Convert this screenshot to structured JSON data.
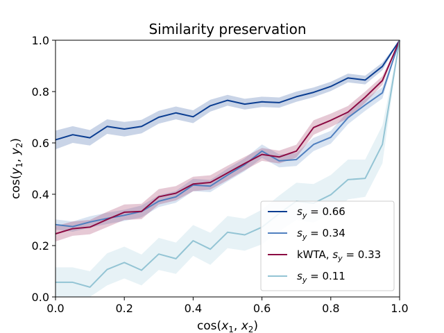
{
  "chart_data": {
    "type": "line",
    "title": "Similarity preservation",
    "xlabel": {
      "prefix": "cos(",
      "v1": "x",
      "s1": "1",
      "sep": ", ",
      "v2": "x",
      "s2": "2",
      "suffix": ")"
    },
    "ylabel": {
      "prefix": "cos(",
      "v1": "y",
      "s1": "1",
      "sep": ", ",
      "v2": "y",
      "s2": "2",
      "suffix": ")"
    },
    "xlim": [
      0.0,
      1.0
    ],
    "ylim": [
      0.0,
      1.0
    ],
    "xticks": [
      "0.0",
      "0.2",
      "0.4",
      "0.6",
      "0.8",
      "1.0"
    ],
    "yticks": [
      "0.0",
      "0.2",
      "0.4",
      "0.6",
      "0.8",
      "1.0"
    ],
    "grid": false,
    "legend_position": "lower-right",
    "x": [
      0.0,
      0.05,
      0.1,
      0.15,
      0.2,
      0.25,
      0.3,
      0.35,
      0.4,
      0.45,
      0.5,
      0.55,
      0.6,
      0.65,
      0.7,
      0.75,
      0.8,
      0.85,
      0.9,
      0.95,
      1.0
    ],
    "series": [
      {
        "name": {
          "pre": "",
          "var": "s",
          "sub": "y",
          "val": " = 0.66"
        },
        "color": "#0a3d91",
        "values": [
          0.612,
          0.632,
          0.62,
          0.664,
          0.654,
          0.664,
          0.7,
          0.717,
          0.702,
          0.745,
          0.766,
          0.751,
          0.76,
          0.757,
          0.78,
          0.797,
          0.82,
          0.853,
          0.845,
          0.898,
          1.0
        ],
        "lower": [
          0.575,
          0.6,
          0.59,
          0.635,
          0.625,
          0.637,
          0.675,
          0.692,
          0.677,
          0.722,
          0.745,
          0.73,
          0.74,
          0.737,
          0.76,
          0.778,
          0.802,
          0.836,
          0.828,
          0.883,
          1.0
        ],
        "upper": [
          0.648,
          0.665,
          0.65,
          0.692,
          0.682,
          0.69,
          0.725,
          0.742,
          0.727,
          0.768,
          0.787,
          0.772,
          0.78,
          0.777,
          0.8,
          0.816,
          0.838,
          0.87,
          0.862,
          0.913,
          1.0
        ]
      },
      {
        "name": {
          "pre": "",
          "var": "s",
          "sub": "y",
          "val": " = 0.34"
        },
        "color": "#4f7fbf",
        "values": [
          0.282,
          0.274,
          0.292,
          0.306,
          0.318,
          0.333,
          0.373,
          0.39,
          0.436,
          0.432,
          0.475,
          0.515,
          0.568,
          0.53,
          0.535,
          0.594,
          0.622,
          0.698,
          0.748,
          0.795,
          1.0
        ],
        "lower": [
          0.262,
          0.254,
          0.27,
          0.284,
          0.296,
          0.31,
          0.35,
          0.367,
          0.412,
          0.408,
          0.45,
          0.49,
          0.542,
          0.505,
          0.51,
          0.568,
          0.597,
          0.673,
          0.725,
          0.773,
          1.0
        ],
        "upper": [
          0.302,
          0.294,
          0.314,
          0.328,
          0.34,
          0.356,
          0.396,
          0.413,
          0.46,
          0.456,
          0.5,
          0.54,
          0.594,
          0.555,
          0.56,
          0.62,
          0.647,
          0.723,
          0.771,
          0.817,
          1.0
        ]
      },
      {
        "name": {
          "pre": "kWTA, ",
          "var": "s",
          "sub": "y",
          "val": " = 0.33"
        },
        "color": "#8b0a42",
        "values": [
          0.246,
          0.266,
          0.272,
          0.302,
          0.33,
          0.333,
          0.39,
          0.404,
          0.44,
          0.446,
          0.483,
          0.52,
          0.555,
          0.545,
          0.568,
          0.66,
          0.688,
          0.72,
          0.778,
          0.843,
          1.0
        ],
        "lower": [
          0.216,
          0.238,
          0.244,
          0.272,
          0.3,
          0.303,
          0.36,
          0.376,
          0.412,
          0.418,
          0.455,
          0.494,
          0.53,
          0.52,
          0.543,
          0.632,
          0.662,
          0.696,
          0.756,
          0.826,
          1.0
        ],
        "upper": [
          0.276,
          0.294,
          0.3,
          0.332,
          0.36,
          0.363,
          0.42,
          0.432,
          0.468,
          0.474,
          0.511,
          0.546,
          0.58,
          0.57,
          0.593,
          0.688,
          0.714,
          0.744,
          0.8,
          0.86,
          1.0
        ]
      },
      {
        "name": {
          "pre": "",
          "var": "s",
          "sub": "y",
          "val": " = 0.11"
        },
        "color": "#93c4d4",
        "values": [
          0.057,
          0.057,
          0.038,
          0.107,
          0.134,
          0.104,
          0.167,
          0.149,
          0.219,
          0.186,
          0.252,
          0.242,
          0.272,
          0.325,
          0.373,
          0.365,
          0.398,
          0.457,
          0.462,
          0.594,
          1.0
        ],
        "lower": [
          0.0,
          0.0,
          0.0,
          0.045,
          0.072,
          0.045,
          0.105,
          0.09,
          0.16,
          0.125,
          0.19,
          0.18,
          0.205,
          0.255,
          0.3,
          0.29,
          0.322,
          0.38,
          0.39,
          0.52,
          1.0
        ],
        "upper": [
          0.115,
          0.115,
          0.1,
          0.17,
          0.196,
          0.165,
          0.23,
          0.212,
          0.28,
          0.25,
          0.315,
          0.305,
          0.34,
          0.395,
          0.445,
          0.44,
          0.475,
          0.535,
          0.535,
          0.668,
          1.0
        ]
      }
    ]
  }
}
